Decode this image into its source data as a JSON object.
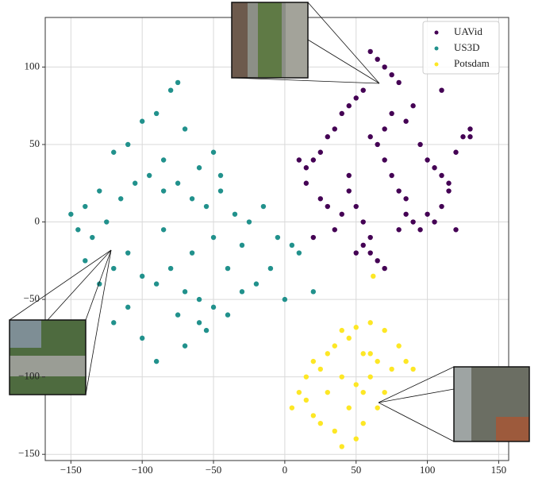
{
  "chart_data": {
    "type": "scatter",
    "xlim": [
      -168,
      157
    ],
    "ylim": [
      -154,
      132
    ],
    "xticks": [
      {
        "value": -150,
        "label": "−150"
      },
      {
        "value": -100,
        "label": "−100"
      },
      {
        "value": -50,
        "label": "−50"
      },
      0,
      50,
      100,
      150
    ],
    "yticks": [
      {
        "value": -150,
        "label": "−150"
      },
      {
        "value": -100,
        "label": "−100"
      },
      {
        "value": -50,
        "label": "−50"
      },
      0,
      50,
      100
    ],
    "grid": true,
    "legend": "upper right",
    "series": [
      {
        "name": "UAVid",
        "color": "#440154",
        "x": [
          60,
          65,
          70,
          75,
          80,
          55,
          50,
          45,
          40,
          35,
          30,
          25,
          20,
          15,
          10,
          85,
          90,
          95,
          100,
          105,
          110,
          115,
          120,
          125,
          130,
          65,
          70,
          75,
          80,
          85,
          45,
          50,
          55,
          60,
          35,
          40,
          25,
          30,
          20,
          15,
          100,
          105,
          110,
          90,
          95,
          60,
          65,
          70,
          55,
          50,
          120,
          115,
          110,
          70,
          75,
          130,
          60,
          45,
          80,
          85
        ],
        "values": [
          110,
          105,
          100,
          95,
          90,
          85,
          80,
          75,
          70,
          60,
          55,
          45,
          40,
          35,
          40,
          65,
          75,
          50,
          40,
          35,
          30,
          25,
          45,
          55,
          60,
          50,
          40,
          30,
          20,
          15,
          20,
          10,
          0,
          -10,
          -5,
          5,
          15,
          10,
          -10,
          25,
          5,
          0,
          10,
          0,
          -5,
          -20,
          -25,
          -30,
          -15,
          -20,
          -5,
          20,
          85,
          60,
          70,
          55,
          55,
          30,
          -5,
          5
        ]
      },
      {
        "name": "US3D",
        "color": "#21918c",
        "x": [
          -80,
          -75,
          -70,
          -85,
          -60,
          -50,
          -45,
          -90,
          -100,
          -110,
          -120,
          -130,
          -140,
          -150,
          -145,
          -135,
          -125,
          -115,
          -105,
          -95,
          -85,
          -75,
          -65,
          -55,
          -45,
          -35,
          -25,
          -15,
          -5,
          5,
          10,
          -120,
          -110,
          -100,
          -90,
          -80,
          -70,
          -60,
          -50,
          -40,
          -30,
          -20,
          -10,
          0,
          -60,
          -55,
          -70,
          -90,
          -100,
          -110,
          -65,
          -50,
          -40,
          -30,
          -85,
          -75,
          -120,
          -130,
          -140,
          20
        ],
        "values": [
          85,
          90,
          60,
          40,
          35,
          45,
          30,
          70,
          65,
          50,
          45,
          20,
          10,
          5,
          -5,
          -10,
          0,
          15,
          25,
          30,
          20,
          25,
          15,
          10,
          20,
          5,
          0,
          10,
          -10,
          -15,
          -20,
          -30,
          -20,
          -35,
          -40,
          -30,
          -45,
          -50,
          -55,
          -60,
          -45,
          -40,
          -30,
          -50,
          -65,
          -70,
          -80,
          -90,
          -75,
          -55,
          -20,
          -10,
          -30,
          -15,
          -5,
          -60,
          -65,
          -40,
          -25,
          -45
        ]
      },
      {
        "name": "Potsdam",
        "color": "#fde725",
        "x": [
          62,
          40,
          50,
          60,
          70,
          80,
          30,
          20,
          10,
          5,
          15,
          25,
          35,
          45,
          55,
          65,
          75,
          85,
          40,
          50,
          60,
          70,
          30,
          20,
          45,
          55,
          65,
          35,
          50,
          60,
          90,
          40,
          25,
          15,
          55
        ],
        "values": [
          -35,
          -70,
          -68,
          -65,
          -70,
          -80,
          -85,
          -90,
          -110,
          -120,
          -100,
          -95,
          -80,
          -75,
          -85,
          -90,
          -95,
          -90,
          -100,
          -105,
          -100,
          -110,
          -110,
          -125,
          -120,
          -130,
          -120,
          -135,
          -140,
          -85,
          -95,
          -145,
          -130,
          -115,
          -110
        ]
      }
    ]
  }
}
